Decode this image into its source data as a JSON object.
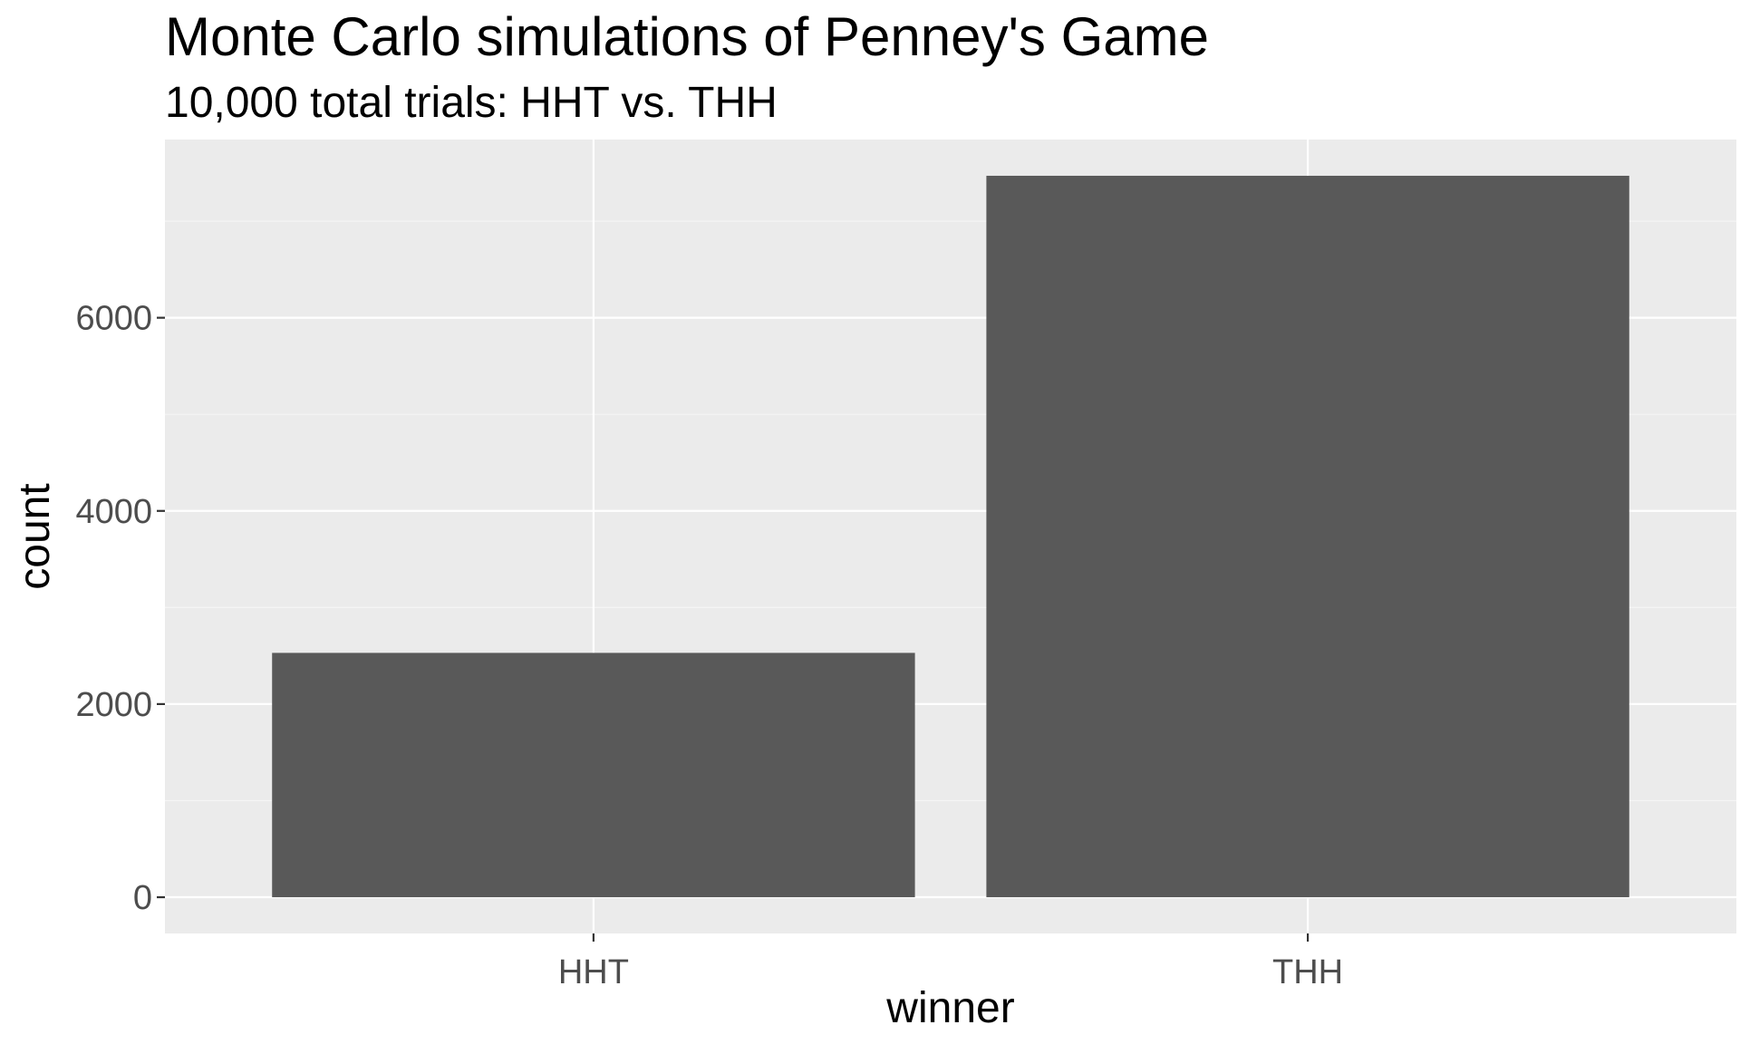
{
  "chart_data": {
    "type": "bar",
    "title": "Monte Carlo simulations of Penney's Game",
    "subtitle": "10,000 total trials: HHT vs. THH",
    "xlabel": "winner",
    "ylabel": "count",
    "categories": [
      "HHT",
      "THH"
    ],
    "values": [
      2530,
      7470
    ],
    "ylim": [
      -375,
      7845
    ],
    "yticks": [
      0,
      2000,
      4000,
      6000
    ],
    "ytick_labels": [
      "0",
      "2000",
      "4000",
      "6000"
    ],
    "grid": true,
    "legend": "none"
  },
  "colors": {
    "panel_background": "#ebebeb",
    "grid_major": "#ffffff",
    "grid_minor": "#f5f5f5",
    "bar_fill": "#595959",
    "tick_mark": "#333333",
    "tick_label": "#4d4d4d",
    "text": "#000000"
  }
}
